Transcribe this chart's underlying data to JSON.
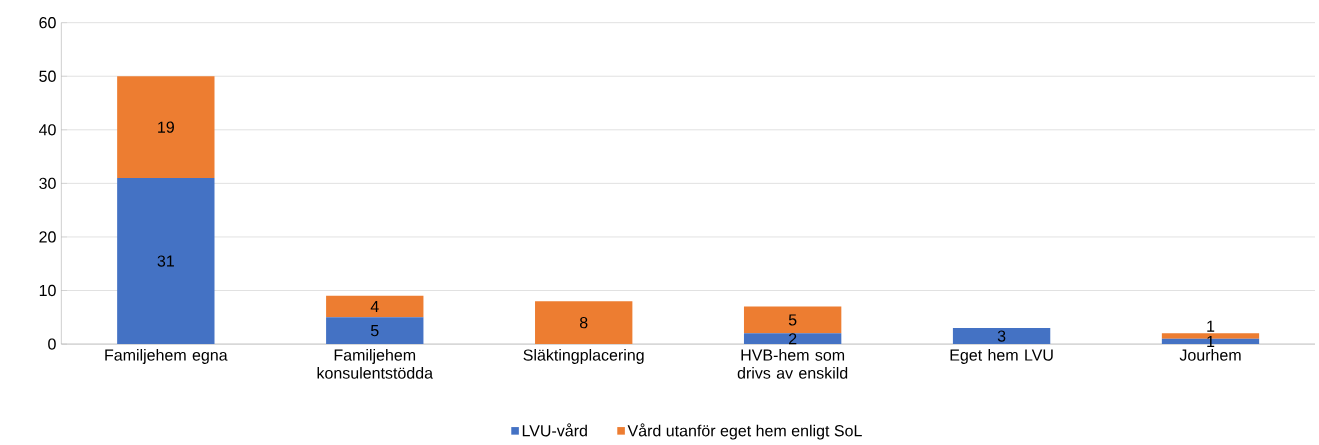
{
  "chart_data": {
    "type": "bar",
    "stacked": true,
    "categories": [
      "Familjehem egna",
      "Familjehem konsulentstödda",
      "Släktingplacering",
      "HVB-hem som drivs av enskild",
      "Eget hem LVU",
      "Jourhem"
    ],
    "series": [
      {
        "name": "LVU-vård",
        "color": "#4472c4",
        "values": [
          31,
          5,
          0,
          2,
          3,
          1
        ],
        "value_labels": [
          "31",
          "5",
          null,
          "2",
          "3",
          "1"
        ]
      },
      {
        "name": "Vård utanför eget hem enligt SoL",
        "color": "#ed7d31",
        "values": [
          19,
          4,
          8,
          5,
          0,
          1
        ],
        "value_labels": [
          "19",
          "4",
          "8",
          "5",
          null,
          "1"
        ]
      }
    ],
    "ylim": [
      0,
      60
    ],
    "yticks": [
      0,
      10,
      20,
      30,
      40,
      50,
      60
    ],
    "grid": "y",
    "legend": "bottom"
  }
}
